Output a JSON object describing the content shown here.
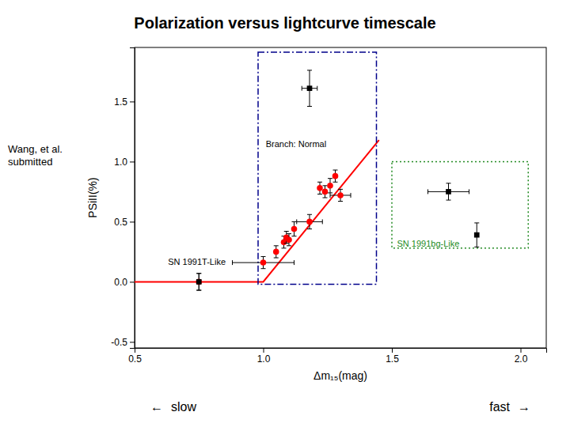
{
  "chart_data": {
    "type": "scatter",
    "title": "Polarization versus lightcurve timescale",
    "author_text": "Wang, et al.\nsubmitted",
    "xlabel": "Δm₁₅(mag)",
    "ylabel": "PSiII(%)",
    "xlim": [
      0.5,
      2.1
    ],
    "ylim": [
      -0.55,
      1.95
    ],
    "xticks": [
      0.5,
      {
        "value": 1.0,
        "label": "1.0"
      },
      1.5,
      {
        "value": 2.0,
        "label": "2.0"
      }
    ],
    "yticks": [
      -0.5,
      {
        "value": 0.0,
        "label": "0.0"
      },
      0.5,
      {
        "value": 1.0,
        "label": "1.0"
      },
      1.5
    ],
    "grid": false,
    "series": [
      {
        "type": "line",
        "color": "red",
        "line_style": "solid",
        "x": [
          0.5,
          1.0,
          1.45
        ],
        "values": [
          0.0,
          0.0,
          1.18
        ]
      },
      {
        "type": "scatter",
        "color": "red",
        "marker": "circle",
        "x": [
          0.75,
          1.0,
          1.05,
          1.08,
          1.09,
          1.1,
          1.12,
          1.18,
          1.22,
          1.24,
          1.26,
          1.28,
          1.3
        ],
        "values": [
          0.0,
          0.16,
          0.25,
          0.33,
          0.37,
          0.35,
          0.44,
          0.5,
          0.78,
          0.75,
          0.8,
          0.88,
          0.72
        ],
        "xerr": [
          0.0,
          0.12,
          0.0,
          0.0,
          0.0,
          0.0,
          0.0,
          0.05,
          0.0,
          0.0,
          0.0,
          0.0,
          0.04
        ],
        "yerr": [
          0.07,
          0.05,
          0.05,
          0.05,
          0.05,
          0.05,
          0.06,
          0.06,
          0.05,
          0.05,
          0.06,
          0.05,
          0.05
        ]
      },
      {
        "type": "scatter",
        "color": "black",
        "marker": "square",
        "x": [
          0.75,
          1.18,
          1.72,
          1.83
        ],
        "values": [
          0.0,
          1.61,
          0.75,
          0.39
        ],
        "xerr": [
          0.0,
          0.03,
          0.08,
          0.0
        ],
        "yerr": [
          0.07,
          0.15,
          0.07,
          0.1
        ]
      }
    ],
    "boxes": [
      {
        "x": 0.98,
        "y": -0.02,
        "width": 0.46,
        "height": 1.93,
        "color": "#00008B",
        "line_style": "dashdot"
      },
      {
        "x": 1.5,
        "y": 0.28,
        "width": 0.53,
        "height": 0.72,
        "color": "#228B22",
        "line_style": "dotted"
      }
    ],
    "annotations": [
      {
        "text": "Branch: Normal",
        "x": 1.01,
        "y": 1.12
      },
      {
        "text": "SN 1991T-Like",
        "x": 0.63,
        "y": 0.14
      },
      {
        "text": "SN 1991bg-Like",
        "x": 1.52,
        "y": 0.29,
        "color": "#228B22"
      }
    ],
    "direction_labels": [
      [
        "←",
        "slow"
      ],
      [
        "fast",
        "→"
      ]
    ]
  }
}
